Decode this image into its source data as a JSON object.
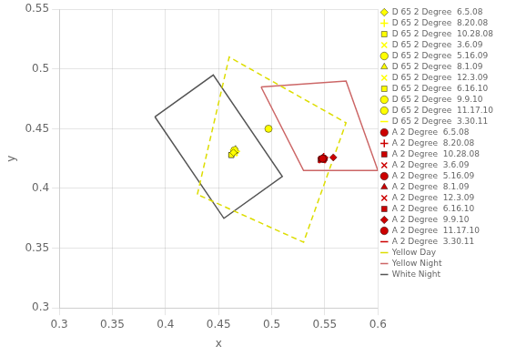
{
  "chart_data": {
    "type": "scatter",
    "xlabel": "x",
    "ylabel": "y",
    "xlim": [
      0.3,
      0.6
    ],
    "ylim": [
      0.3,
      0.55
    ],
    "xticks": [
      0.3,
      0.35,
      0.4,
      0.45,
      0.5,
      0.55,
      0.6
    ],
    "yticks": [
      0.3,
      0.35,
      0.4,
      0.45,
      0.5,
      0.55
    ],
    "grid": true,
    "legend": "right",
    "series": [
      {
        "name": "Yellow Day",
        "type": "polygon",
        "color": "#dddd00",
        "line_style": "dashed",
        "x": [
          0.43,
          0.46,
          0.57,
          0.53
        ],
        "values": [
          0.395,
          0.51,
          0.455,
          0.355
        ]
      },
      {
        "name": "Yellow Night",
        "type": "polygon",
        "color": "#cc6666",
        "line_style": "solid",
        "x": [
          0.49,
          0.53,
          0.6,
          0.57
        ],
        "values": [
          0.485,
          0.415,
          0.415,
          0.49
        ]
      },
      {
        "name": "White Night",
        "type": "polygon",
        "color": "#555555",
        "line_style": "solid",
        "x": [
          0.39,
          0.455,
          0.51,
          0.445
        ],
        "values": [
          0.46,
          0.375,
          0.41,
          0.495
        ]
      },
      {
        "name": "D 65 2 Degree  6.5.08",
        "type": "scatter",
        "color": "#ffff00",
        "marker": "diamond",
        "x": [
          0.464
        ],
        "values": [
          0.43
        ]
      },
      {
        "name": "D 65 2 Degree  8.20.08",
        "type": "scatter",
        "color": "#ffff00",
        "marker": "plus",
        "x": [
          0.466
        ],
        "values": [
          0.431
        ]
      },
      {
        "name": "D 65 2 Degree  10.28.08",
        "type": "scatter",
        "color": "#ffff00",
        "marker": "square",
        "x": [
          0.462
        ],
        "values": [
          0.428
        ]
      },
      {
        "name": "D 65 2 Degree  3.6.09",
        "type": "scatter",
        "color": "#ffff00",
        "marker": "x",
        "x": [
          0.465
        ],
        "values": [
          0.43
        ]
      },
      {
        "name": "D 65 2 Degree  5.16.09",
        "type": "scatter",
        "color": "#ffff00",
        "marker": "circle",
        "x": [
          0.465
        ],
        "values": [
          0.432
        ]
      },
      {
        "name": "D 65 2 Degree  8.1.09",
        "type": "scatter",
        "color": "#ffff00",
        "marker": "triangle",
        "x": [
          0.466
        ],
        "values": [
          0.433
        ]
      },
      {
        "name": "D 65 2 Degree  12.3.09",
        "type": "scatter",
        "color": "#ffff00",
        "marker": "x",
        "x": [
          0.464
        ],
        "values": [
          0.43
        ]
      },
      {
        "name": "D 65 2 Degree  6.16.10",
        "type": "scatter",
        "color": "#ffff00",
        "marker": "square",
        "x": [
          0.462
        ],
        "values": [
          0.428
        ]
      },
      {
        "name": "D 65 2 Degree  9.9.10",
        "type": "scatter",
        "color": "#ffff00",
        "marker": "circle",
        "x": [
          0.497
        ],
        "values": [
          0.45
        ]
      },
      {
        "name": "D 65 2 Degree  11.17.10",
        "type": "scatter",
        "color": "#ffff00",
        "marker": "circle",
        "x": [
          0.465
        ],
        "values": [
          0.431
        ]
      },
      {
        "name": "D 65 2 Degree  3.30.11",
        "type": "scatter",
        "color": "#ffff00",
        "marker": "hline",
        "x": [
          0.465
        ],
        "values": [
          0.43
        ]
      },
      {
        "name": "A 2 Degree  6.5.08",
        "type": "scatter",
        "color": "#cc0000",
        "marker": "circle",
        "x": [
          0.548
        ],
        "values": [
          0.425
        ]
      },
      {
        "name": "A 2 Degree  8.20.08",
        "type": "scatter",
        "color": "#cc0000",
        "marker": "plus",
        "x": [
          0.549
        ],
        "values": [
          0.426
        ]
      },
      {
        "name": "A 2 Degree  10.28.08",
        "type": "scatter",
        "color": "#cc0000",
        "marker": "square",
        "x": [
          0.547
        ],
        "values": [
          0.425
        ]
      },
      {
        "name": "A 2 Degree  3.6.09",
        "type": "scatter",
        "color": "#cc0000",
        "marker": "x",
        "x": [
          0.548
        ],
        "values": [
          0.424
        ]
      },
      {
        "name": "A 2 Degree  5.16.09",
        "type": "scatter",
        "color": "#cc0000",
        "marker": "circle",
        "x": [
          0.549
        ],
        "values": [
          0.425
        ]
      },
      {
        "name": "A 2 Degree  8.1.09",
        "type": "scatter",
        "color": "#cc0000",
        "marker": "triangle",
        "x": [
          0.548
        ],
        "values": [
          0.426
        ]
      },
      {
        "name": "A 2 Degree  12.3.09",
        "type": "scatter",
        "color": "#cc0000",
        "marker": "x",
        "x": [
          0.547
        ],
        "values": [
          0.424
        ]
      },
      {
        "name": "A 2 Degree  6.16.10",
        "type": "scatter",
        "color": "#cc0000",
        "marker": "square",
        "x": [
          0.546
        ],
        "values": [
          0.424
        ]
      },
      {
        "name": "A 2 Degree  9.9.10",
        "type": "scatter",
        "color": "#cc0000",
        "marker": "diamond",
        "x": [
          0.558
        ],
        "values": [
          0.426
        ]
      },
      {
        "name": "A 2 Degree  11.17.10",
        "type": "scatter",
        "color": "#cc0000",
        "marker": "circle",
        "x": [
          0.549
        ],
        "values": [
          0.425
        ]
      },
      {
        "name": "A 2 Degree  3.30.11",
        "type": "scatter",
        "color": "#cc0000",
        "marker": "hline",
        "x": [
          0.548
        ],
        "values": [
          0.425
        ]
      }
    ]
  }
}
